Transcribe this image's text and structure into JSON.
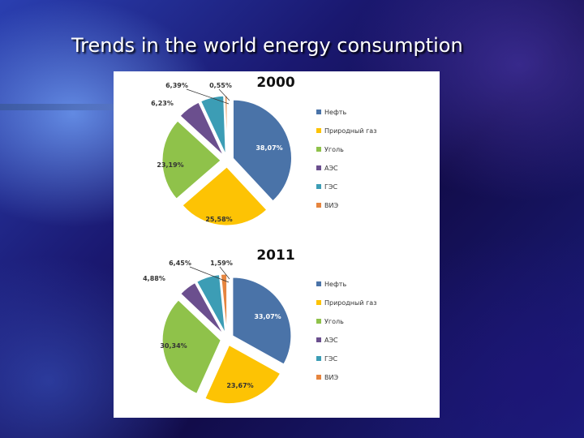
{
  "slide": {
    "title": "Trends in the world energy consumption"
  },
  "chart_data": [
    {
      "type": "pie",
      "title": "2000",
      "categories": [
        "Нефть",
        "Природный газ",
        "Уголь",
        "АЭС",
        "ГЭС",
        "ВИЭ"
      ],
      "values": [
        38.07,
        25.58,
        23.19,
        6.23,
        6.39,
        0.55
      ],
      "labels": [
        "38,07%",
        "25,58%",
        "23,19%",
        "6,23%",
        "6,39%",
        "0,55%"
      ],
      "colors": [
        "#4a73a8",
        "#fdc304",
        "#8fc24a",
        "#6b4f8e",
        "#3c9db5",
        "#e6853f"
      ],
      "legend": "right"
    },
    {
      "type": "pie",
      "title": "2011",
      "categories": [
        "Нефть",
        "Природный газ",
        "Уголь",
        "АЭС",
        "ГЭС",
        "ВИЭ"
      ],
      "values": [
        33.07,
        23.67,
        30.34,
        4.88,
        6.45,
        1.59
      ],
      "labels": [
        "33,07%",
        "23,67%",
        "30,34%",
        "4,88%",
        "6,45%",
        "1,59%"
      ],
      "colors": [
        "#4a73a8",
        "#fdc304",
        "#8fc24a",
        "#6b4f8e",
        "#3c9db5",
        "#e6853f"
      ],
      "legend": "right"
    }
  ]
}
